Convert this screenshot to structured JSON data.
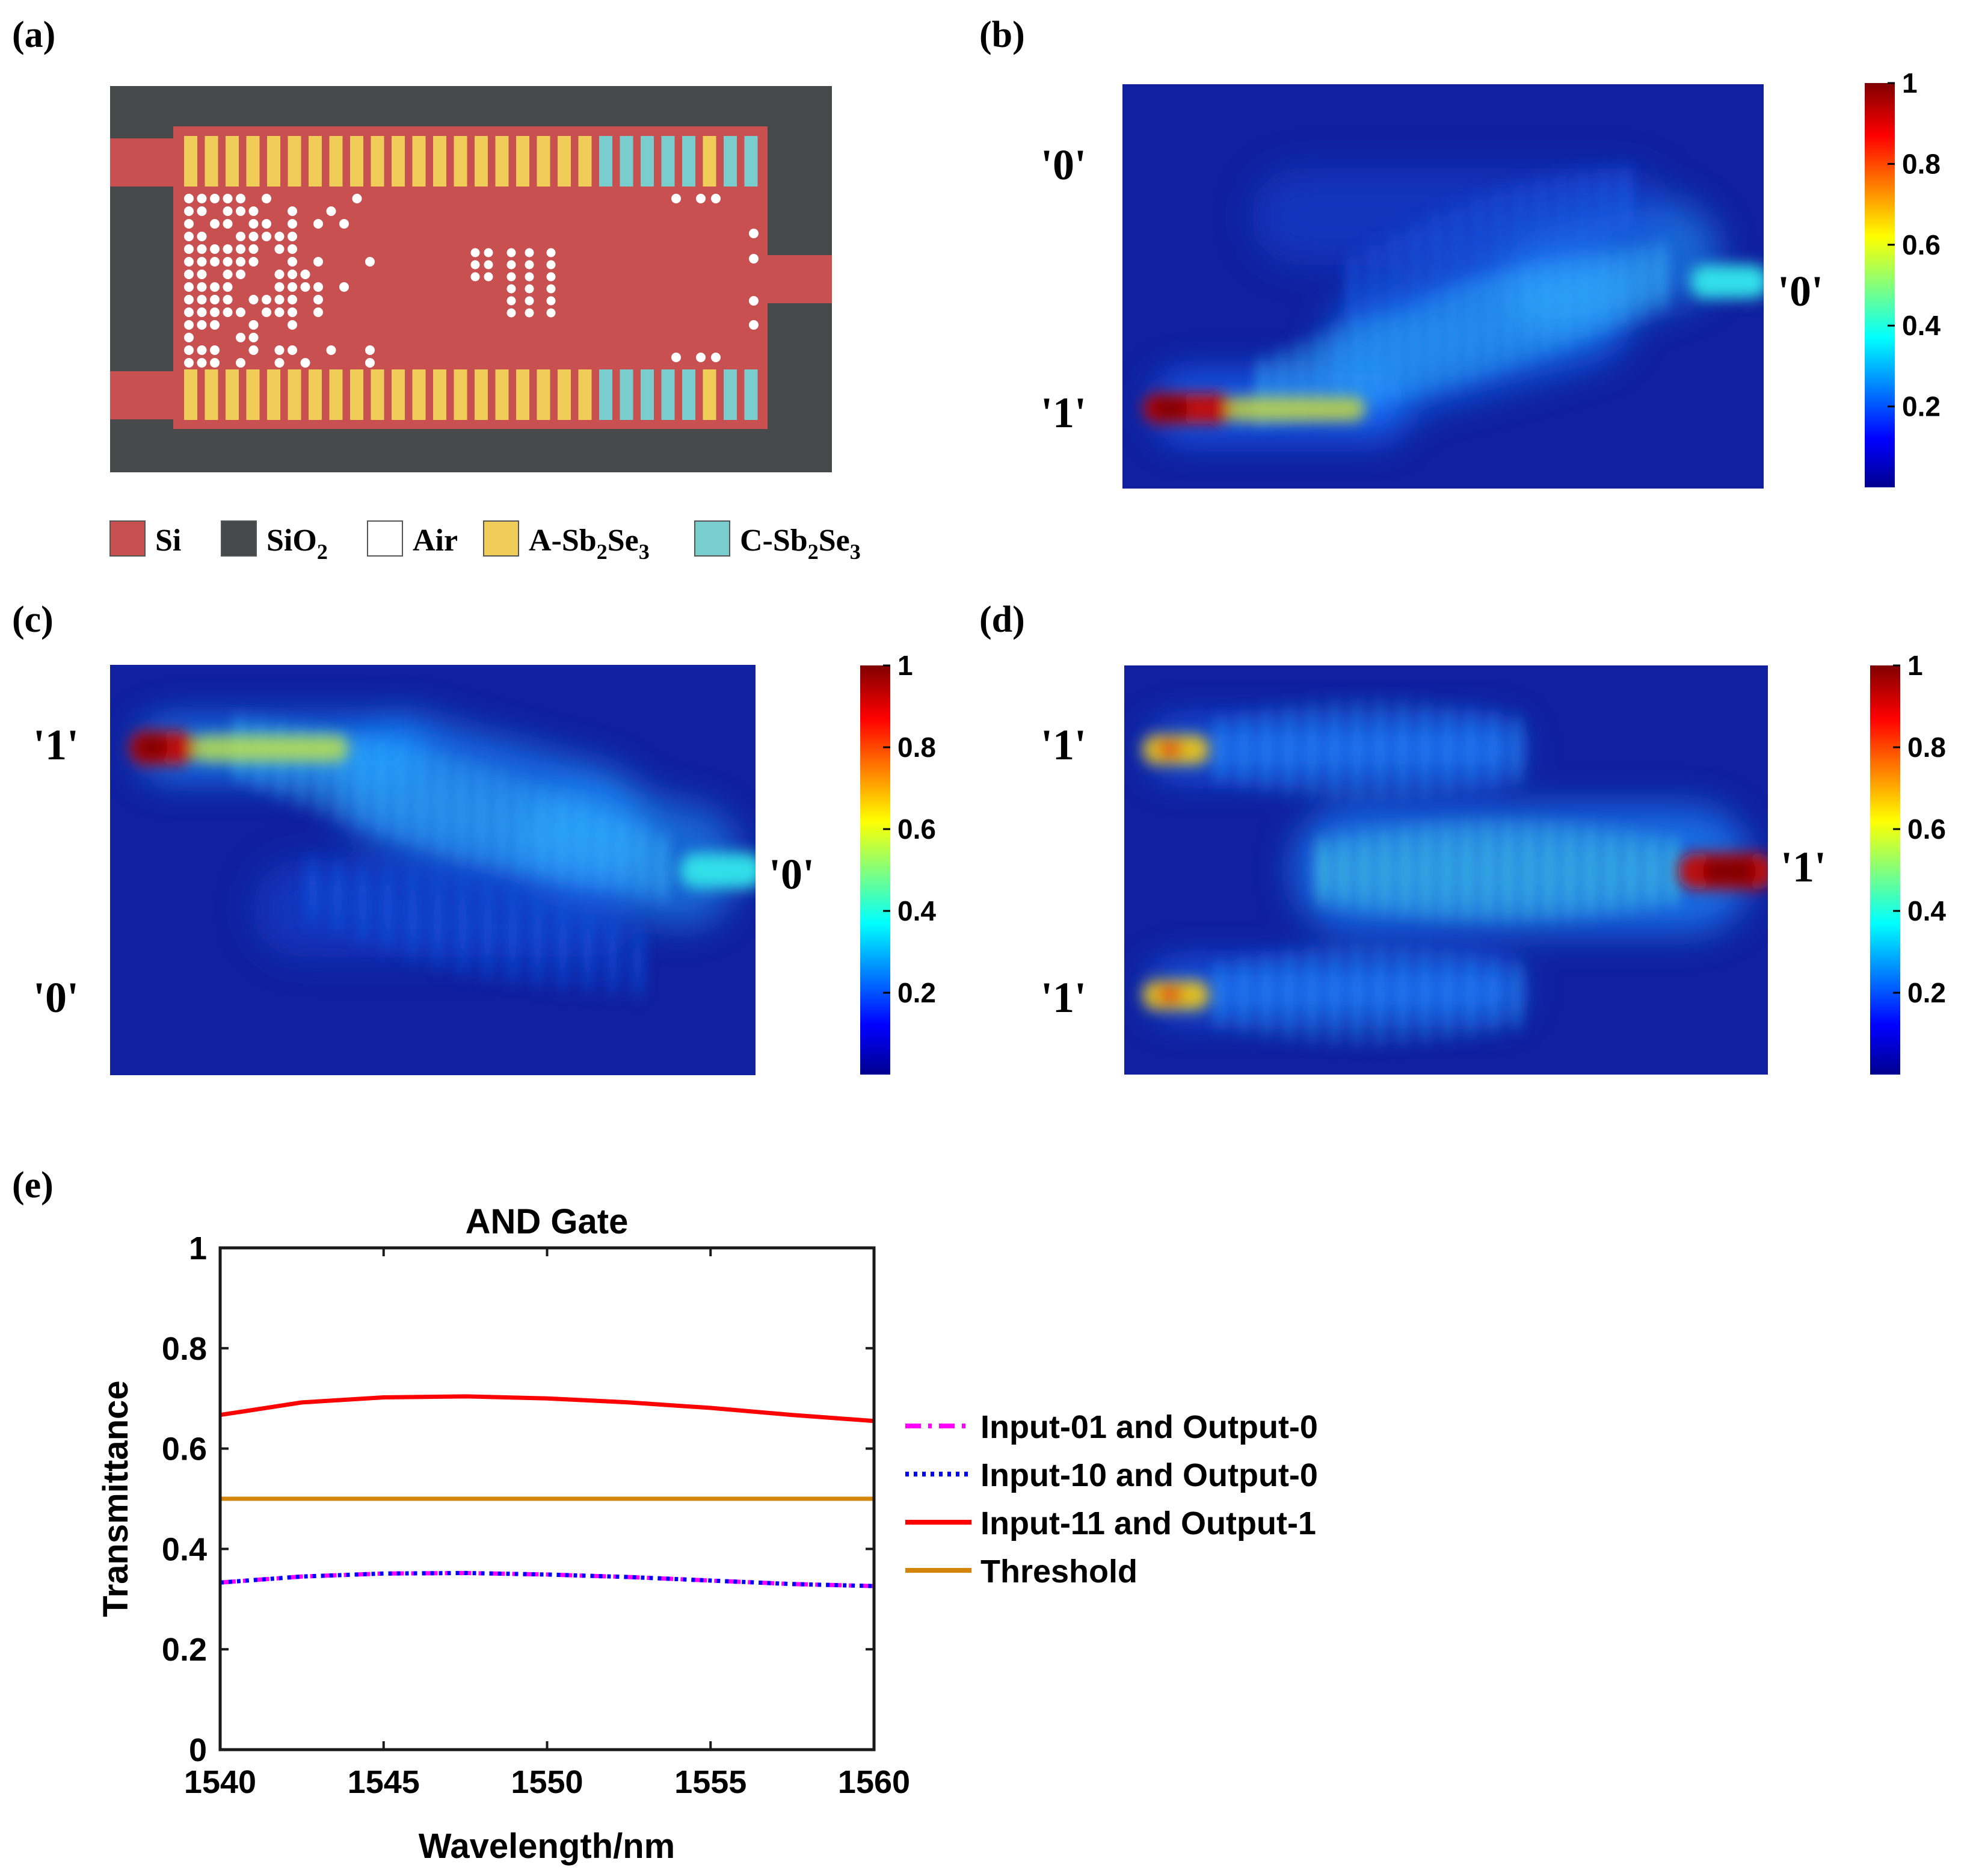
{
  "panel_labels": {
    "a": "(a)",
    "b": "(b)",
    "c": "(c)",
    "d": "(d)",
    "e": "(e)"
  },
  "legend_materials": {
    "si": "Si",
    "sio2_base": "SiO",
    "sio2_sub": "2",
    "air": "Air",
    "a_prefix": "A-Sb",
    "a_sub1": "2",
    "a_mid": "Se",
    "a_sub2": "3",
    "c_prefix": "C-Sb",
    "c_sub1": "2",
    "c_mid": "Se",
    "c_sub2": "3"
  },
  "colors": {
    "si": "#c85050",
    "sio2": "#474849",
    "air": "#ffffff",
    "a_sb2se3": "#f0cd58",
    "c_sb2se3": "#7acdcd",
    "field_background": "#10209f"
  },
  "port_labels": {
    "b": {
      "top_in": "'0'",
      "bottom_in": "'1'",
      "out": "'0'"
    },
    "c": {
      "top_in": "'1'",
      "bottom_in": "'0'",
      "out": "'0'"
    },
    "d": {
      "top_in": "'1'",
      "bottom_in": "'1'",
      "out": "'1'"
    }
  },
  "colorbar": {
    "ticks": [
      "1",
      "0.8",
      "0.6",
      "0.4",
      "0.2"
    ]
  },
  "chart_data": {
    "type": "line",
    "title": "AND Gate",
    "xlabel": "Wavelength/nm",
    "ylabel": "Transmittance",
    "xlim": [
      1540,
      1560
    ],
    "ylim": [
      0,
      1
    ],
    "xticks": [
      "1540",
      "1545",
      "1550",
      "1555",
      "1560"
    ],
    "yticks": [
      "0",
      "0.2",
      "0.4",
      "0.6",
      "0.8",
      "1"
    ],
    "x": [
      1540,
      1542.5,
      1545,
      1547.5,
      1550,
      1552.5,
      1555,
      1557.5,
      1560
    ],
    "series": [
      {
        "name": "Input-01 and Output-0",
        "color": "#ff00ff",
        "style": "dashdot",
        "values": [
          0.333,
          0.345,
          0.351,
          0.352,
          0.349,
          0.344,
          0.337,
          0.33,
          0.326
        ]
      },
      {
        "name": "Input-10 and Output-0",
        "color": "#0000ff",
        "style": "dotted",
        "values": [
          0.333,
          0.345,
          0.351,
          0.352,
          0.349,
          0.344,
          0.337,
          0.33,
          0.326
        ]
      },
      {
        "name": "Input-11 and Output-1",
        "color": "#ff0000",
        "style": "solid",
        "values": [
          0.667,
          0.692,
          0.702,
          0.704,
          0.7,
          0.692,
          0.681,
          0.667,
          0.655
        ]
      },
      {
        "name": "Threshold",
        "color": "#d4860b",
        "style": "solid",
        "values": [
          0.5,
          0.5,
          0.5,
          0.5,
          0.5,
          0.5,
          0.5,
          0.5,
          0.5
        ]
      }
    ]
  }
}
